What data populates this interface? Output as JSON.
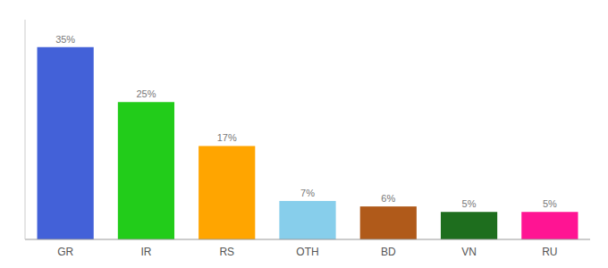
{
  "chart_data": {
    "type": "bar",
    "categories": [
      "GR",
      "IR",
      "RS",
      "OTH",
      "BD",
      "VN",
      "RU"
    ],
    "values": [
      35,
      25,
      17,
      7,
      6,
      5,
      5
    ],
    "value_labels": [
      "35%",
      "25%",
      "17%",
      "7%",
      "6%",
      "5%",
      "5%"
    ],
    "colors": [
      "#4361d8",
      "#22cc1a",
      "#ffa500",
      "#87ceeb",
      "#b05a1a",
      "#1e6e1e",
      "#ff1493"
    ],
    "ylim": [
      0,
      40
    ],
    "grid": false,
    "data_labels": true,
    "tick_labels": "x"
  }
}
